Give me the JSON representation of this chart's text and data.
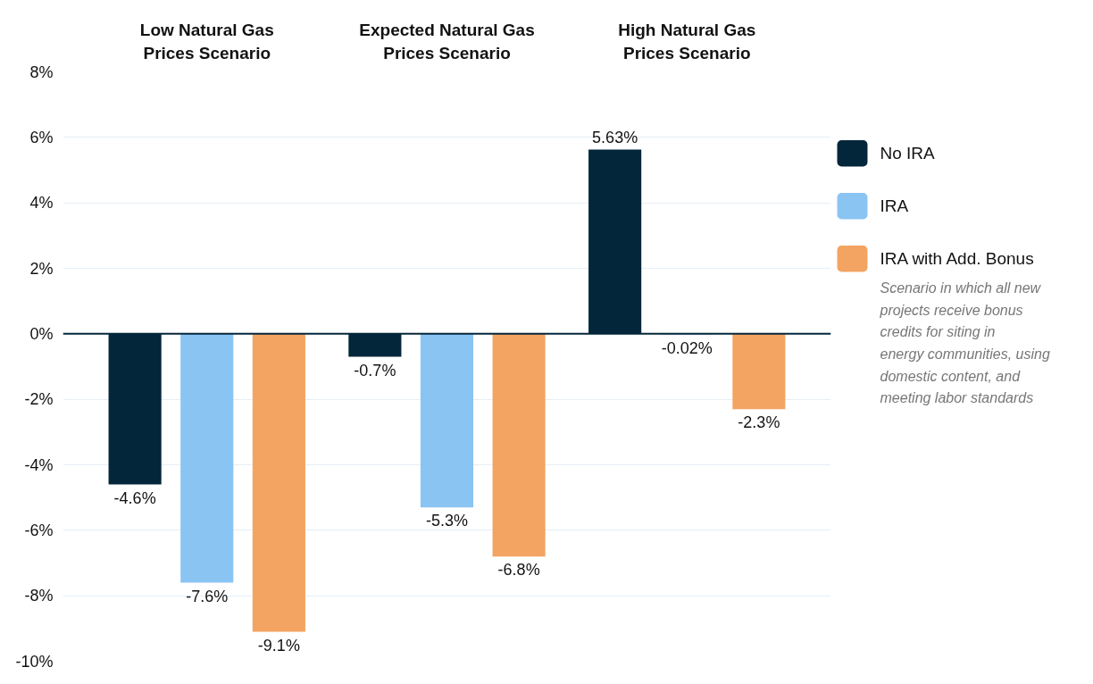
{
  "chart_data": {
    "type": "bar",
    "categories": [
      "Low Natural Gas Prices Scenario",
      "Expected Natural Gas Prices Scenario",
      "High Natural Gas Prices Scenario"
    ],
    "series": [
      {
        "name": "No IRA",
        "color": "#04263a",
        "values": [
          -4.6,
          -0.7,
          5.63
        ],
        "value_labels": [
          "-4.6%",
          "-0.7%",
          "5.63%"
        ]
      },
      {
        "name": "IRA",
        "color": "#8ac4f3",
        "values": [
          -7.6,
          -5.3,
          -0.02
        ],
        "value_labels": [
          "-7.6%",
          "-5.3%",
          "-0.02%"
        ]
      },
      {
        "name": "IRA with Add. Bonus",
        "color": "#f3a462",
        "values": [
          -9.1,
          -6.8,
          -2.3
        ],
        "value_labels": [
          "-9.1%",
          "-6.8%",
          "-2.3%"
        ]
      }
    ],
    "ylim": [
      -10,
      8
    ],
    "yticks": [
      {
        "value": -10,
        "label": "-10%"
      },
      {
        "value": -8,
        "label": "-8%"
      },
      {
        "value": -6,
        "label": "-6%"
      },
      {
        "value": -4,
        "label": "-4%"
      },
      {
        "value": -2,
        "label": "-2%"
      },
      {
        "value": 0,
        "label": "0%"
      },
      {
        "value": 2,
        "label": "2%"
      },
      {
        "value": 4,
        "label": "4%"
      },
      {
        "value": 6,
        "label": "6%"
      },
      {
        "value": 8,
        "label": "8%"
      }
    ],
    "grid": "y",
    "legend": "right",
    "ref_lines": [
      {
        "axis": "y",
        "value": 0,
        "label": null,
        "color": "#04263a"
      }
    ],
    "annotations": [
      "Scenario in which all new projects receive bonus credits for siting in energy communities, using domestic content, and meeting labor standards"
    ]
  }
}
